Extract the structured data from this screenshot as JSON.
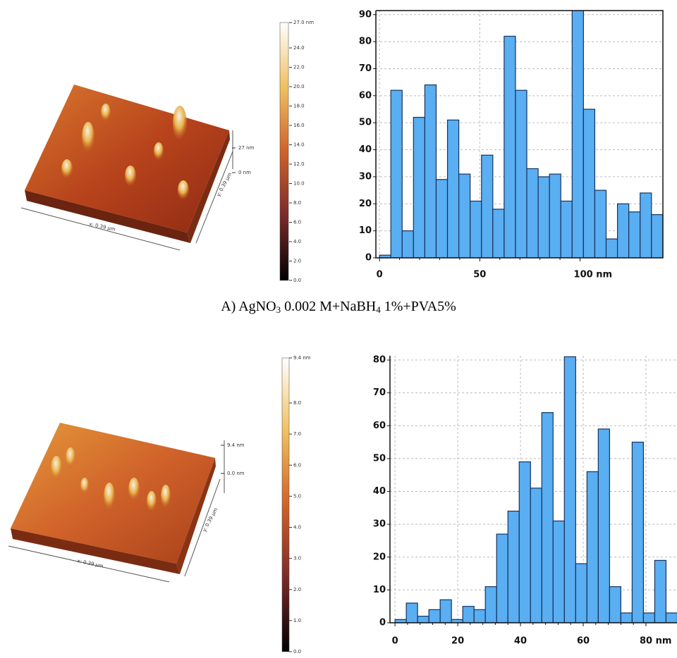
{
  "chart_data": [
    {
      "type": "histogram",
      "bins": [
        0,
        5.65,
        11.3,
        16.95,
        22.6,
        28.25,
        33.9,
        39.55,
        45.2,
        50.85,
        56.5,
        62.15,
        67.8,
        73.45,
        79.1,
        84.75,
        90.4,
        96.05,
        101.7,
        107.35,
        113,
        118.65,
        124.3,
        129.95,
        135.6,
        141.25
      ],
      "values": [
        1,
        62,
        10,
        52,
        64,
        29,
        51,
        31,
        21,
        38,
        18,
        82,
        62,
        33,
        30,
        31,
        21,
        92,
        55,
        25,
        7,
        20,
        17,
        24,
        16
      ],
      "xlim": [
        -1.8,
        141.3
      ],
      "ylim": [
        0,
        91.5
      ],
      "xticks": [
        0,
        50,
        {
          "value": 100,
          "label": "100 nm"
        }
      ],
      "yticks": [
        0,
        10,
        20,
        30,
        40,
        50,
        60,
        70,
        80,
        90
      ],
      "grid": true,
      "color": "#5aaef2"
    },
    {
      "type": "histogram",
      "bins": [
        0,
        3.6,
        7.2,
        10.8,
        14.4,
        18,
        21.6,
        25.2,
        28.8,
        32.4,
        36,
        39.6,
        43.2,
        46.8,
        50.4,
        54,
        57.6,
        61.2,
        64.8,
        68.4,
        72,
        75.6,
        79.2,
        82.8,
        86.4,
        90
      ],
      "values": [
        1,
        6,
        2,
        4,
        7,
        1,
        5,
        4,
        11,
        27,
        34,
        49,
        41,
        64,
        31,
        81,
        18,
        46,
        59,
        11,
        3,
        55,
        3,
        19,
        3
      ],
      "xlim": [
        -1.6,
        89.9
      ],
      "ylim": [
        0,
        81.3
      ],
      "xticks": [
        0,
        20,
        40,
        60,
        {
          "value": 80,
          "label": "80 nm"
        }
      ],
      "yticks": [
        0,
        10,
        20,
        30,
        40,
        50,
        60,
        70,
        80
      ],
      "grid": true,
      "color": "#5aaef2"
    }
  ],
  "panels": [
    {
      "caption": [
        "A)  AgNO",
        "3",
        " 0.002 M+NaBH",
        "4",
        " 1%+PVA5%"
      ],
      "colorbar_ticks": [
        "27.0 nm",
        "24.0",
        "22.0",
        "20.0",
        "18.0",
        "16.0",
        "14.0",
        "12.0",
        "10.0",
        "8.0",
        "6.0",
        "4.0",
        "2.0",
        "0.0"
      ],
      "z_labels": [
        "27 nm",
        "0 nm"
      ],
      "x_label": "x: 0.39 µm",
      "y_label": "y: 0.39 µm"
    },
    {
      "colorbar_ticks": [
        "9.4 nm",
        "8.0",
        "7.0",
        "6.0",
        "5.0",
        "4.0",
        "3.0",
        "2.0",
        "1.0",
        "0.0"
      ],
      "z_labels": [
        "9.4 nm",
        "0.0 nm"
      ],
      "x_label": "x: 0.39 µm",
      "y_label": "y: 0.39 µm"
    }
  ]
}
